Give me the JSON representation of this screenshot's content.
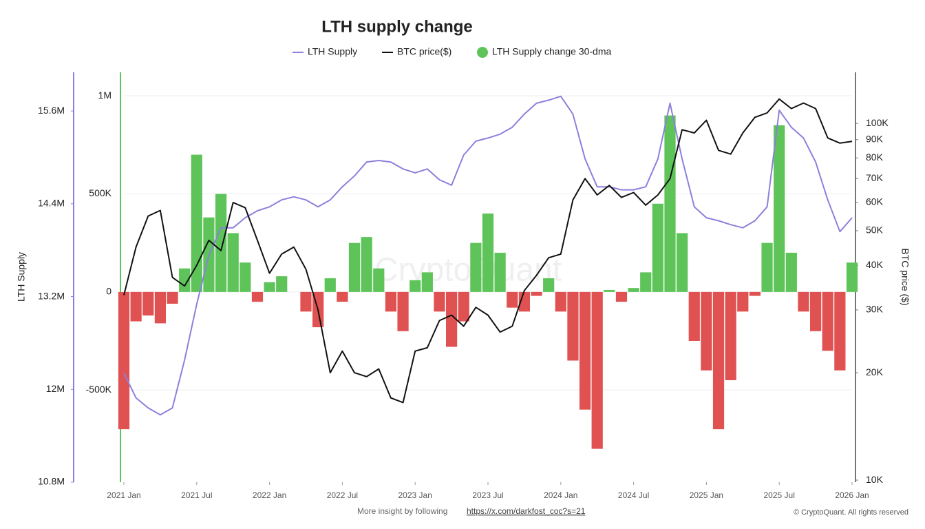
{
  "chart_data": {
    "type": "bar-line",
    "title": "LTH supply change",
    "y_label": "LTH Supply",
    "y3_label": "BTC price ($)",
    "watermark": "CryptoQuant",
    "footer_text": "More insight by following",
    "footer_link": "https://x.com/darkfost_coc?s=21",
    "copyright": "© CryptoQuant. All rights reserved",
    "x": [
      "2021-01",
      "2021-02",
      "2021-03",
      "2021-04",
      "2021-05",
      "2021-06",
      "2021-07",
      "2021-08",
      "2021-09",
      "2021-10",
      "2021-11",
      "2021-12",
      "2022-01",
      "2022-02",
      "2022-03",
      "2022-04",
      "2022-05",
      "2022-06",
      "2022-07",
      "2022-08",
      "2022-09",
      "2022-10",
      "2022-11",
      "2022-12",
      "2023-01",
      "2023-02",
      "2023-03",
      "2023-04",
      "2023-05",
      "2023-06",
      "2023-07",
      "2023-08",
      "2023-09",
      "2023-10",
      "2023-11",
      "2023-12",
      "2024-01",
      "2024-02",
      "2024-03",
      "2024-04",
      "2024-05",
      "2024-06",
      "2024-07",
      "2024-08",
      "2024-09",
      "2024-10",
      "2024-11",
      "2024-12",
      "2025-01",
      "2025-02",
      "2025-03",
      "2025-04",
      "2025-05",
      "2025-06",
      "2025-07",
      "2025-08",
      "2025-09",
      "2025-10",
      "2025-11",
      "2025-12",
      "2026-01"
    ],
    "xticks": [
      {
        "value": "2021-01",
        "label": "2021 Jan"
      },
      {
        "value": "2021-07",
        "label": "2021 Jul"
      },
      {
        "value": "2022-01",
        "label": "2022 Jan"
      },
      {
        "value": "2022-07",
        "label": "2022 Jul"
      },
      {
        "value": "2023-01",
        "label": "2023 Jan"
      },
      {
        "value": "2023-07",
        "label": "2023 Jul"
      },
      {
        "value": "2024-01",
        "label": "2024 Jan"
      },
      {
        "value": "2024-07",
        "label": "2024 Jul"
      },
      {
        "value": "2025-01",
        "label": "2025 Jan"
      },
      {
        "value": "2025-07",
        "label": "2025 Jul"
      },
      {
        "value": "2026-01",
        "label": "2026 Jan"
      }
    ],
    "ylim": [
      10800000,
      16100000
    ],
    "yticks": [
      {
        "value": 10800000,
        "label": "10.8M"
      },
      {
        "value": 12000000,
        "label": "12M"
      },
      {
        "value": 13200000,
        "label": "13.2M"
      },
      {
        "value": 14400000,
        "label": "14.4M"
      },
      {
        "value": 15600000,
        "label": "15.6M"
      }
    ],
    "y2lim": [
      -970000,
      1120000
    ],
    "y2ticks": [
      {
        "value": -500000,
        "label": "-500K"
      },
      0,
      {
        "value": 500000,
        "label": "500K"
      },
      {
        "value": 1000000,
        "label": "1M"
      }
    ],
    "y3lim": [
      9870,
      139000
    ],
    "y3_log": true,
    "y3ticks": [
      {
        "value": 10000,
        "label": "10K"
      },
      {
        "value": 20000,
        "label": "20K"
      },
      {
        "value": 30000,
        "label": "30K"
      },
      {
        "value": 40000,
        "label": "40K"
      },
      {
        "value": 50000,
        "label": "50K"
      },
      {
        "value": 60000,
        "label": "60K"
      },
      {
        "value": 70000,
        "label": "70K"
      },
      {
        "value": 80000,
        "label": "80K"
      },
      {
        "value": 90000,
        "label": "90K"
      },
      {
        "value": 100000,
        "label": "100K"
      }
    ],
    "grid": true,
    "series": [
      {
        "name": "LTH Supply",
        "color": "#8b80dc",
        "kind": "line",
        "axis": "y",
        "values": [
          12210000,
          11890000,
          11760000,
          11670000,
          11760000,
          12380000,
          13100000,
          13730000,
          14090000,
          14090000,
          14220000,
          14310000,
          14360000,
          14450000,
          14490000,
          14450000,
          14360000,
          14450000,
          14620000,
          14760000,
          14940000,
          14960000,
          14940000,
          14850000,
          14800000,
          14850000,
          14710000,
          14640000,
          15030000,
          15210000,
          15250000,
          15300000,
          15390000,
          15560000,
          15700000,
          15740000,
          15790000,
          15560000,
          14980000,
          14620000,
          14620000,
          14580000,
          14580000,
          14620000,
          14980000,
          15700000,
          14980000,
          14360000,
          14220000,
          14180000,
          14130000,
          14090000,
          14180000,
          14360000,
          15610000,
          15390000,
          15250000,
          14940000,
          14450000,
          14040000,
          14220000
        ]
      },
      {
        "name": "BTC price($)",
        "color": "#111111",
        "kind": "line",
        "axis": "y3",
        "values": [
          33000,
          45000,
          55000,
          57000,
          37000,
          35000,
          40000,
          47000,
          44000,
          60000,
          58000,
          47000,
          38000,
          43000,
          45000,
          39000,
          30000,
          20000,
          23000,
          20000,
          19500,
          20500,
          17000,
          16500,
          23000,
          23500,
          28000,
          29000,
          27000,
          30500,
          29000,
          26000,
          27000,
          34000,
          37500,
          42000,
          43000,
          61000,
          70000,
          63000,
          67000,
          62000,
          64000,
          59000,
          63000,
          70000,
          96000,
          94000,
          102000,
          84000,
          82000,
          94000,
          104000,
          107000,
          117000,
          110000,
          114000,
          110000,
          91000,
          88000,
          89000
        ]
      },
      {
        "name": "LTH Supply change 30-dma",
        "color": "#5ec45a",
        "negative_color": "#e05252",
        "kind": "bar",
        "axis": "y2",
        "values": [
          -700000,
          -150000,
          -120000,
          -160000,
          -60000,
          120000,
          700000,
          380000,
          500000,
          300000,
          150000,
          -50000,
          50000,
          80000,
          0,
          -100000,
          -180000,
          70000,
          -50000,
          250000,
          280000,
          120000,
          -100000,
          -200000,
          60000,
          100000,
          -100000,
          -280000,
          -150000,
          250000,
          400000,
          200000,
          -80000,
          -100000,
          -20000,
          70000,
          -100000,
          -350000,
          -600000,
          -800000,
          10000,
          -50000,
          20000,
          100000,
          450000,
          900000,
          300000,
          -250000,
          -400000,
          -700000,
          -450000,
          -100000,
          -20000,
          250000,
          850000,
          200000,
          -100000,
          -200000,
          -300000,
          -400000,
          150000
        ]
      }
    ]
  }
}
